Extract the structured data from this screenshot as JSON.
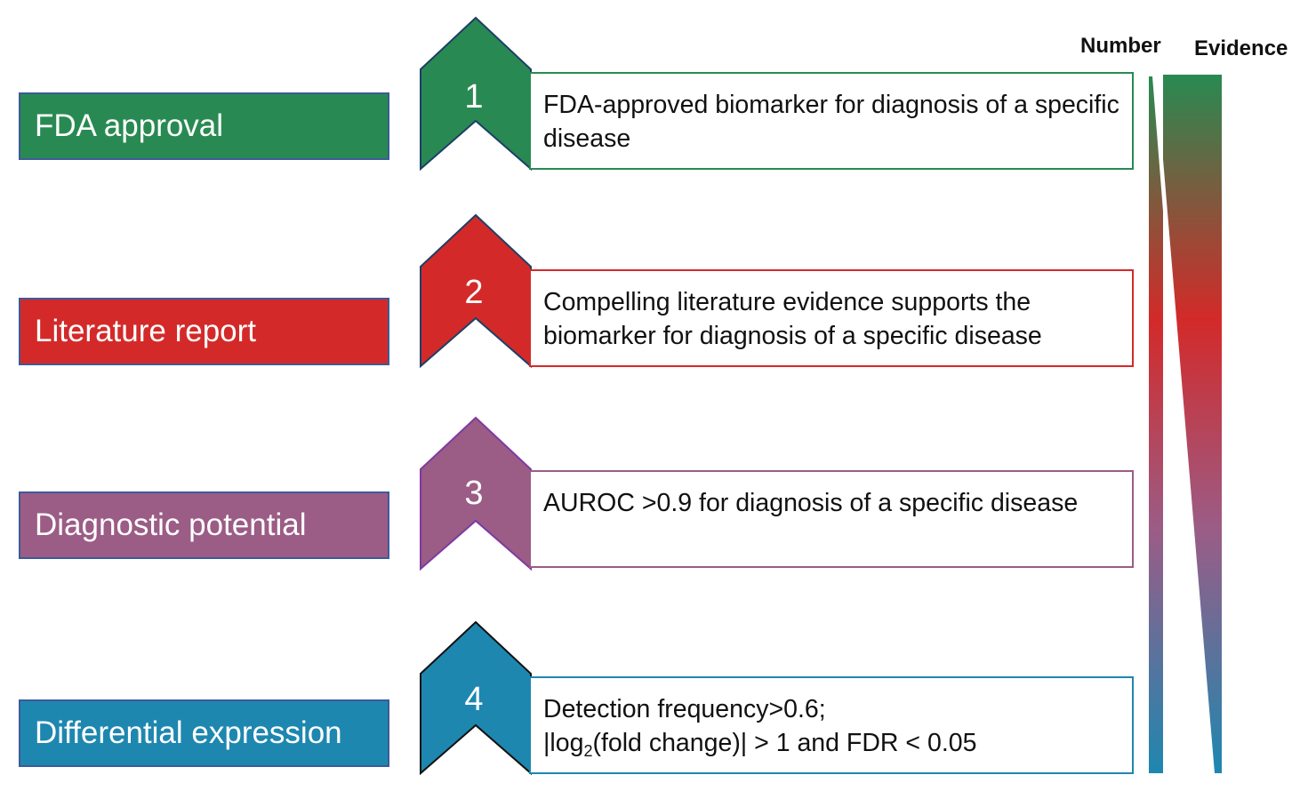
{
  "colors": {
    "fda": "#288a52",
    "literature": "#d32a29",
    "diagnostic": "#9b5c86",
    "differential": "#1e87b0"
  },
  "headers": {
    "number": "Number",
    "evidence": "Evidence"
  },
  "levels": [
    {
      "number": "1",
      "label": "FDA approval",
      "description": "FDA-approved biomarker for diagnosis of a specific disease"
    },
    {
      "number": "2",
      "label": "Literature report",
      "description": "Compelling literature evidence supports the biomarker for diagnosis of a specific disease"
    },
    {
      "number": "3",
      "label": "Diagnostic potential",
      "description": "AUROC >0.9 for diagnosis of a specific disease"
    },
    {
      "number": "4",
      "label": "Differential expression",
      "description_line1": "Detection frequency>0.6;",
      "description_line2_prefix": "|log",
      "description_line2_sub": "2",
      "description_line2_suffix": "(fold change)| > 1 and FDR < 0.05"
    }
  ]
}
